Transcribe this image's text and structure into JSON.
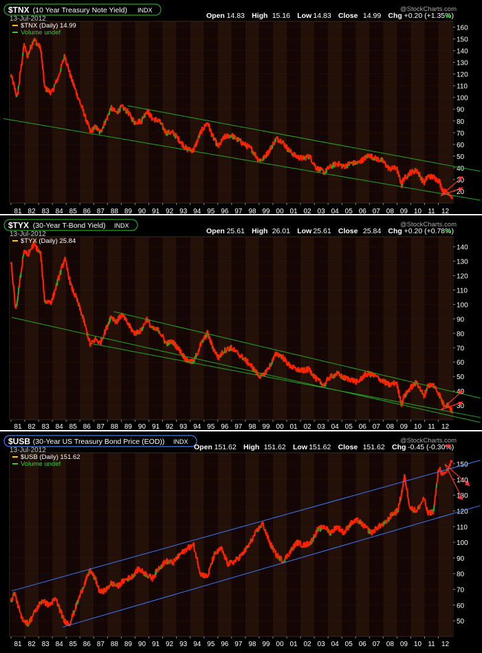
{
  "watermark": "@StockCharts.com",
  "x_tick_labels": [
    "81",
    "82",
    "83",
    "84",
    "85",
    "86",
    "87",
    "88",
    "89",
    "90",
    "91",
    "92",
    "93",
    "94",
    "95",
    "96",
    "97",
    "98",
    "99",
    "00",
    "01",
    "02",
    "03",
    "04",
    "05",
    "06",
    "07",
    "08",
    "09",
    "10",
    "11",
    "12"
  ],
  "colors": {
    "background": "#000000",
    "panel_bg": "#0a0a0a",
    "band_dark": "#150606",
    "band_light": "#231008",
    "price_up": "#22aa22",
    "price_down": "#ff2200",
    "channel_green": "#1faa1f",
    "channel_blue": "#3a7bff",
    "arrow_red": "#ff3030",
    "ohlc_label": "#ffffff",
    "ohlc_value": "#ffffff",
    "legend_price": "#ffcc00",
    "legend_volume": "#33cc33",
    "grid": "#5a3a1a"
  },
  "chart_data": [
    {
      "type": "line",
      "symbol": "$TNX",
      "title": "(10 Year Treasury Note Yield)",
      "exchange": "INDX",
      "date": "13-Jul-2012",
      "ohlc": {
        "open": "14.83",
        "high": "15.16",
        "low": "14.83",
        "close": "14.99",
        "chg": "+0.20 (+1.35%)"
      },
      "legend": {
        "price": "$TNX (Daily) 14.99",
        "volume": "Volume undef"
      },
      "ylim": [
        10,
        165
      ],
      "yticks": [
        20,
        30,
        40,
        50,
        60,
        70,
        80,
        90,
        100,
        110,
        120,
        130,
        140,
        150,
        160
      ],
      "series": [
        {
          "name": "$TNX (Daily)",
          "x": [
            1980.55,
            1981.0,
            1981.5,
            1981.75,
            1982.2,
            1982.7,
            1983.0,
            1983.5,
            1984.0,
            1984.45,
            1984.9,
            1985.3,
            1985.8,
            1986.3,
            1986.7,
            1987.0,
            1987.5,
            1987.8,
            1988.2,
            1988.6,
            1989.0,
            1989.5,
            1990.0,
            1990.4,
            1990.8,
            1991.3,
            1991.8,
            1992.3,
            1992.8,
            1993.3,
            1993.8,
            1994.3,
            1994.8,
            1995.2,
            1995.6,
            1996.0,
            1996.5,
            1997.0,
            1997.5,
            1998.0,
            1998.5,
            1998.8,
            1999.3,
            1999.8,
            2000.2,
            2000.7,
            2001.2,
            2001.7,
            2002.2,
            2002.7,
            2003.3,
            2003.6,
            2004.2,
            2004.7,
            2005.2,
            2005.7,
            2006.2,
            2006.5,
            2007.0,
            2007.5,
            2008.0,
            2008.5,
            2008.9,
            2009.0,
            2009.5,
            2010.0,
            2010.5,
            2010.8,
            2011.2,
            2011.6,
            2011.9,
            2012.3,
            2012.55
          ],
          "y": [
            119,
            100,
            145,
            135,
            150,
            142,
            108,
            104,
            118,
            136,
            117,
            104,
            88,
            71,
            75,
            70,
            82,
            91,
            87,
            92,
            88,
            79,
            80,
            89,
            82,
            80,
            70,
            70,
            63,
            56,
            55,
            70,
            79,
            66,
            58,
            66,
            68,
            64,
            60,
            56,
            47,
            47,
            55,
            65,
            63,
            55,
            50,
            48,
            50,
            40,
            36,
            40,
            44,
            41,
            44,
            44,
            48,
            51,
            48,
            46,
            39,
            40,
            25,
            30,
            36,
            38,
            27,
            33,
            32,
            29,
            20,
            19,
            15
          ]
        }
      ],
      "channels": [
        {
          "name": "lower",
          "from": [
            1980.0,
            82
          ],
          "to": [
            2012.6,
            15
          ]
        },
        {
          "name": "upper",
          "from": [
            1989.0,
            93
          ],
          "to": [
            2012.6,
            40
          ]
        }
      ],
      "annotations": [
        {
          "type": "arrows",
          "direction": "up",
          "text": ""
        }
      ]
    },
    {
      "type": "line",
      "symbol": "$TYX",
      "title": "(30-Year T-Bond Yield)",
      "exchange": "INDX",
      "date": "13-Jul-2012",
      "ohlc": {
        "open": "25.61",
        "high": "26.01",
        "low": "25.61",
        "close": "25.84",
        "chg": "+0.20 (+0.78%)"
      },
      "legend": {
        "price": "$TYX (Daily) 25.84",
        "volume": ""
      },
      "ylim": [
        20,
        147
      ],
      "yticks": [
        30,
        40,
        50,
        60,
        70,
        80,
        90,
        100,
        110,
        120,
        130,
        140
      ],
      "series": [
        {
          "name": "$TYX (Daily)",
          "x": [
            1980.55,
            1980.9,
            1981.5,
            1981.75,
            1982.2,
            1982.7,
            1983.0,
            1983.5,
            1984.0,
            1984.45,
            1984.9,
            1985.3,
            1985.8,
            1986.3,
            1986.7,
            1987.0,
            1987.5,
            1987.8,
            1988.2,
            1988.6,
            1989.0,
            1989.5,
            1990.0,
            1990.4,
            1990.8,
            1991.3,
            1991.8,
            1992.3,
            1992.8,
            1993.3,
            1993.8,
            1994.3,
            1994.8,
            1995.2,
            1995.6,
            1996.0,
            1996.5,
            1997.0,
            1997.5,
            1998.0,
            1998.5,
            1998.8,
            1999.3,
            1999.8,
            2000.2,
            2000.7,
            2001.2,
            2001.7,
            2002.2,
            2002.7,
            2003.3,
            2003.6,
            2004.2,
            2004.7,
            2005.2,
            2005.7,
            2006.2,
            2006.5,
            2007.0,
            2007.5,
            2008.0,
            2008.5,
            2008.9,
            2009.0,
            2009.5,
            2010.0,
            2010.5,
            2010.8,
            2011.2,
            2011.6,
            2011.9,
            2012.3,
            2012.55
          ],
          "y": [
            130,
            95,
            138,
            134,
            142,
            135,
            102,
            102,
            118,
            132,
            113,
            104,
            90,
            72,
            76,
            73,
            84,
            92,
            88,
            93,
            87,
            80,
            82,
            90,
            83,
            82,
            73,
            74,
            68,
            61,
            60,
            72,
            80,
            70,
            63,
            68,
            70,
            66,
            62,
            57,
            51,
            50,
            57,
            66,
            64,
            58,
            55,
            54,
            55,
            48,
            44,
            49,
            52,
            49,
            48,
            46,
            51,
            52,
            50,
            47,
            44,
            46,
            30,
            35,
            42,
            46,
            36,
            44,
            44,
            38,
            31,
            30,
            25.8
          ]
        }
      ],
      "channels": [
        {
          "name": "lower",
          "from": [
            1980.6,
            91
          ],
          "to": [
            2012.6,
            21
          ]
        },
        {
          "name": "mid",
          "from": [
            1986.3,
            73
          ],
          "to": [
            2012.6,
            24
          ]
        },
        {
          "name": "upper",
          "from": [
            1988.0,
            95
          ],
          "to": [
            2012.6,
            38
          ]
        }
      ],
      "annotations": [
        {
          "type": "arrows",
          "direction": "up",
          "text": ""
        }
      ]
    },
    {
      "type": "line",
      "symbol": "$USB",
      "title": "(30-Year US Treasury Bond Price (EOD))",
      "exchange": "INDX",
      "date": "13-Jul-2012",
      "ohlc": {
        "open": "151.62",
        "high": "151.62",
        "low": "151.62",
        "close": "151.62",
        "chg": "-0.45 (-0.30%)"
      },
      "legend": {
        "price": "$USB (Daily) 151.62",
        "volume": "Volume undef"
      },
      "ylim": [
        40,
        157
      ],
      "yticks": [
        50,
        60,
        70,
        80,
        90,
        100,
        110,
        120,
        130,
        140,
        150
      ],
      "series": [
        {
          "name": "$USB (Daily)",
          "x": [
            1980.55,
            1980.8,
            1981.3,
            1981.8,
            1982.3,
            1982.8,
            1983.3,
            1983.8,
            1984.4,
            1984.8,
            1985.3,
            1985.8,
            1986.3,
            1986.7,
            1987.0,
            1987.5,
            1987.8,
            1988.3,
            1988.8,
            1989.3,
            1989.8,
            1990.3,
            1990.8,
            1991.3,
            1991.8,
            1992.3,
            1992.8,
            1993.3,
            1993.8,
            1994.3,
            1994.8,
            1995.3,
            1995.8,
            1996.3,
            1996.8,
            1997.3,
            1997.8,
            1998.3,
            1998.8,
            1999.3,
            1999.8,
            2000.3,
            2000.8,
            2001.3,
            2001.8,
            2002.3,
            2002.8,
            2003.3,
            2003.7,
            2004.2,
            2004.7,
            2005.2,
            2005.7,
            2006.2,
            2006.7,
            2007.2,
            2007.7,
            2008.2,
            2008.6,
            2008.9,
            2009.1,
            2009.5,
            2010.0,
            2010.5,
            2010.8,
            2011.2,
            2011.6,
            2011.9,
            2012.2,
            2012.55
          ],
          "y": [
            62,
            68,
            52,
            48,
            56,
            63,
            60,
            64,
            50,
            48,
            60,
            72,
            82,
            76,
            68,
            70,
            74,
            72,
            76,
            78,
            83,
            80,
            77,
            84,
            88,
            87,
            92,
            96,
            98,
            80,
            78,
            92,
            96,
            86,
            88,
            92,
            98,
            106,
            112,
            100,
            92,
            88,
            94,
            100,
            98,
            100,
            108,
            110,
            106,
            110,
            106,
            112,
            114,
            110,
            106,
            110,
            112,
            118,
            120,
            132,
            142,
            122,
            120,
            128,
            118,
            120,
            148,
            142,
            146,
            151.6
          ]
        }
      ],
      "channels": [
        {
          "name": "lower",
          "from": [
            1984.3,
            46
          ],
          "to": [
            2012.6,
            120
          ]
        },
        {
          "name": "upper",
          "from": [
            1980.6,
            69
          ],
          "to": [
            2012.6,
            149
          ]
        }
      ],
      "annotations": [
        {
          "type": "arrows",
          "direction": "down",
          "text": ""
        }
      ]
    }
  ]
}
